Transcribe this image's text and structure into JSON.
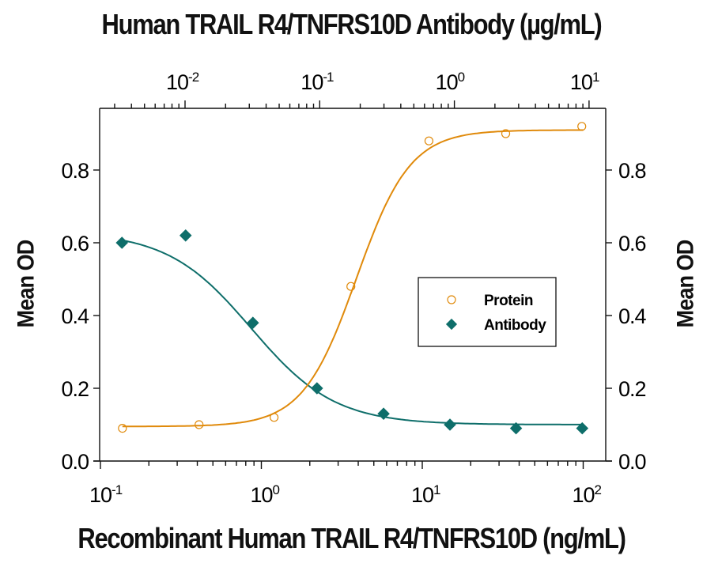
{
  "chart_data": {
    "type": "scatter",
    "title": "Human TRAIL R4/TNFRS10D Antibody (µg/mL)",
    "xlabel": "Recombinant Human TRAIL R4/TNFRS10D (ng/mL)",
    "ylabel": "Mean OD",
    "ylabel_right": "Mean OD",
    "x_scale": "log",
    "xlim": [
      0.1,
      150
    ],
    "ylim": [
      0.0,
      0.97
    ],
    "x_ticks": [
      "10-1",
      "100",
      "101",
      "102"
    ],
    "x_tick_values": [
      0.1,
      1,
      10,
      100
    ],
    "top_axis": {
      "label": "Human TRAIL R4/TNFRS10D Antibody (µg/mL)",
      "scale": "log",
      "ticks": [
        "10-2",
        "10-1",
        "100",
        "101"
      ],
      "tick_values": [
        0.01,
        0.1,
        1,
        10
      ],
      "xlim": [
        0.0024,
        12
      ]
    },
    "y_ticks": [
      "0.0",
      "0.2",
      "0.4",
      "0.6",
      "0.8"
    ],
    "y_tick_values": [
      0.0,
      0.2,
      0.4,
      0.6,
      0.8
    ],
    "grid": false,
    "legend_position": "center-right",
    "series": [
      {
        "name": "Protein",
        "axis": "bottom",
        "marker": "open-circle",
        "color": "#E08A0B",
        "x": [
          0.137,
          0.41,
          1.2,
          3.6,
          11,
          33,
          98
        ],
        "values": [
          0.09,
          0.1,
          0.12,
          0.48,
          0.88,
          0.9,
          0.92
        ],
        "fit": {
          "type": "4PL",
          "bottom": 0.095,
          "top": 0.91,
          "ec50": 3.9,
          "hill": 2.6
        }
      },
      {
        "name": "Antibody",
        "axis": "top",
        "marker": "filled-diamond",
        "color": "#0E6E6A",
        "x": [
          0.0034,
          0.0101,
          0.0319,
          0.0954,
          0.298,
          0.927,
          2.87,
          8.9
        ],
        "values": [
          0.6,
          0.62,
          0.38,
          0.2,
          0.13,
          0.1,
          0.09,
          0.09
        ],
        "fit": {
          "type": "4PL",
          "bottom": 0.1,
          "top": 0.63,
          "ic50": 0.031,
          "hill": 1.4
        }
      }
    ]
  },
  "labels": {
    "top_title": "Human TRAIL R4/TNFRS10D Antibody (µg/mL)",
    "bottom_title": "Recombinant Human TRAIL R4/TNFRS10D (ng/mL)",
    "ylabel_left": "Mean OD",
    "ylabel_right": "Mean OD",
    "legend": [
      {
        "label": "Protein"
      },
      {
        "label": "Antibody"
      }
    ]
  }
}
